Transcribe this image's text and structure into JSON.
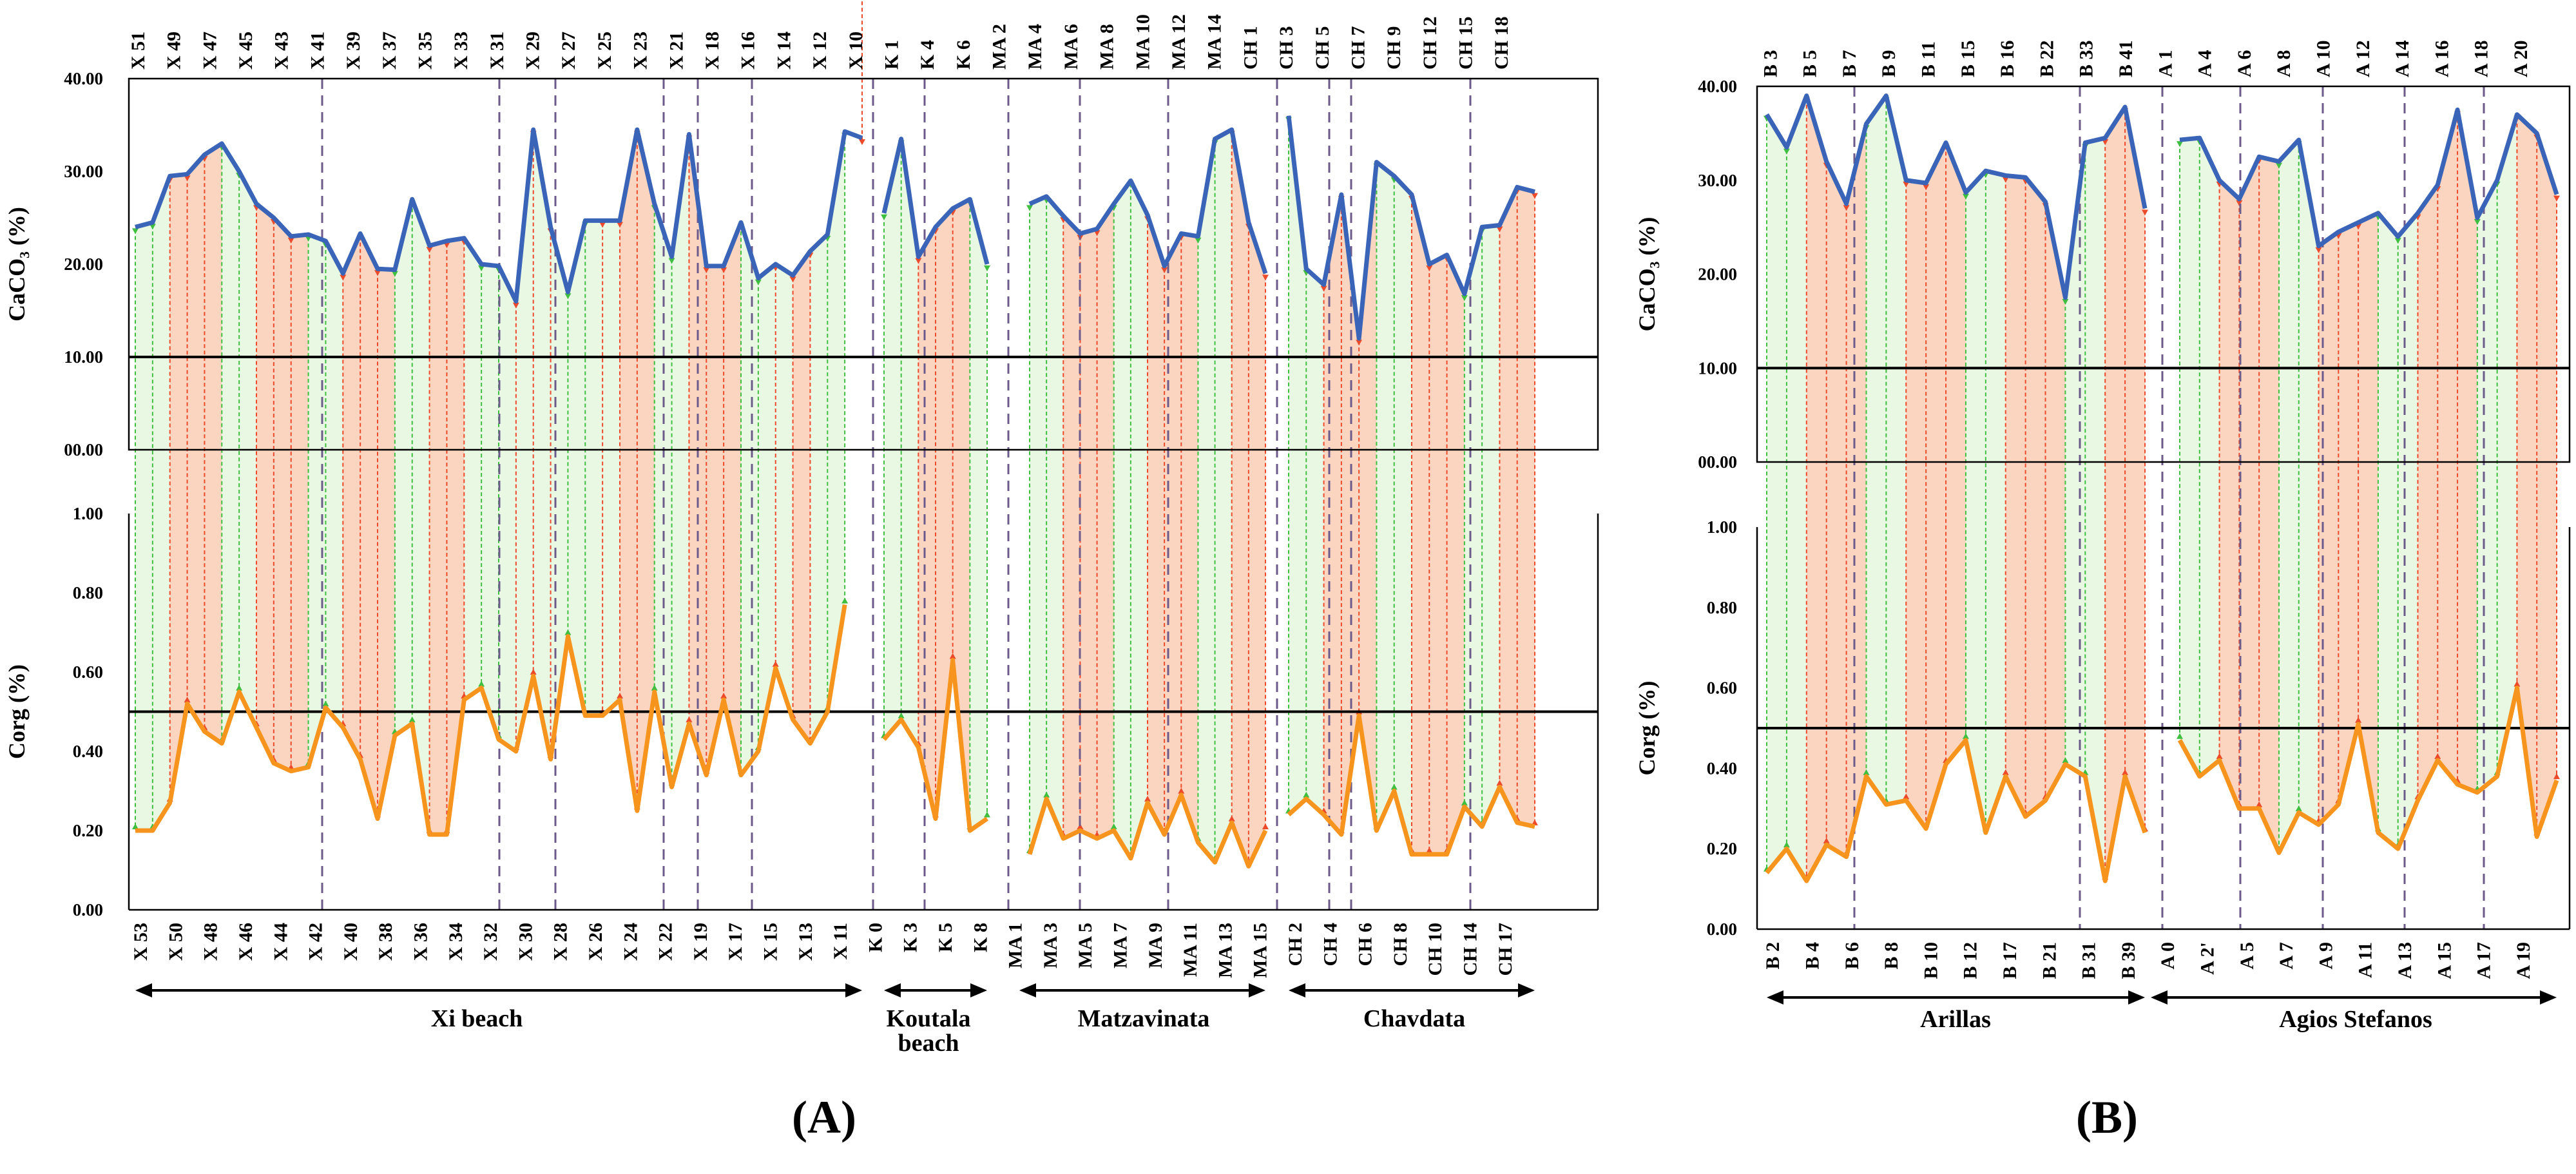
{
  "chart_data": [
    {
      "type": "line",
      "panel_label": "(A)",
      "title": "",
      "upper": {
        "ylabel": "CaCO₃ (%)",
        "ylim": [
          0,
          40
        ],
        "yticks": [
          "00.00",
          "10.00",
          "20.00",
          "30.00",
          "40.00"
        ],
        "threshold": 10,
        "top_labels": [
          "X 51",
          "X 49",
          "X 47",
          "X 45",
          "X 43",
          "X 41",
          "X 39",
          "X 37",
          "X 35",
          "X 33",
          "X 31",
          "X 29",
          "X 27",
          "X 25",
          "X 23",
          "X 21",
          "X 18",
          "X 16",
          "X 14",
          "X 12",
          "X 10",
          "K 1",
          "K 4",
          "K 6",
          "MA 2",
          "MA 4",
          "MA 6",
          "MA 8",
          "MA 10",
          "MA 12",
          "MA 14",
          "CH 1",
          "CH 3",
          "CH 5",
          "CH 7",
          "CH 9",
          "CH 12",
          "CH 15",
          "CH 18"
        ],
        "series": [
          {
            "name": "CaCO3 Xi beach",
            "values": [
              24,
              24.5,
              29.5,
              29.7,
              31.8,
              33,
              30,
              26.5,
              25,
              23,
              23.2,
              22.5,
              19,
              23.3,
              19.5,
              19.4,
              27,
              22,
              22.5,
              22.8,
              20,
              19.8,
              16,
              34.5,
              24,
              17,
              24.7,
              24.7,
              24.7,
              34.5,
              26.5,
              20.8,
              34,
              19.8,
              19.8,
              24.5,
              18.5,
              20,
              18.8,
              21.4,
              23.2,
              34.3,
              33.6
            ]
          },
          {
            "name": "CaCO3 Koutala beach",
            "values": [
              25.5,
              33.5,
              20.8,
              24,
              26,
              27,
              20
            ]
          },
          {
            "name": "CaCO3 Matzavinata",
            "values": [
              26.5,
              27.3,
              25.2,
              23.3,
              23.8,
              26.5,
              29,
              25.3,
              19.8,
              23.3,
              23,
              33.5,
              34.5,
              24.5,
              19
            ]
          },
          {
            "name": "CaCO3 Chavdata",
            "values": [
              36,
              19.5,
              17.8,
              27.5,
              12,
              31,
              29.5,
              27.5,
              20,
              21,
              16.8,
              24,
              24.2,
              28.3,
              27.8
            ]
          }
        ]
      },
      "lower": {
        "ylabel": "Corg (%)",
        "ylim": [
          0,
          1
        ],
        "yticks": [
          "0.00",
          "0.20",
          "0.40",
          "0.60",
          "0.80",
          "1.00"
        ],
        "threshold": 0.5,
        "bottom_labels": [
          "X 53",
          "X 50",
          "X 48",
          "X 46",
          "X 44",
          "X 42",
          "X 40",
          "X 38",
          "X 36",
          "X 34",
          "X 32",
          "X 30",
          "X 28",
          "X 26",
          "X 24",
          "X 22",
          "X 19",
          "X 17",
          "X 15",
          "X 13",
          "X 11",
          "K 0",
          "K 3",
          "K 5",
          "K 8",
          "MA 1",
          "MA 3",
          "MA 5",
          "MA 7",
          "MA 9",
          "MA 11",
          "MA 13",
          "MA 15",
          "CH 2",
          "CH 4",
          "CH 6",
          "CH 8",
          "CH 10",
          "CH 14",
          "CH 17"
        ],
        "series": [
          {
            "name": "Corg Xi beach",
            "values": [
              0.2,
              0.2,
              0.27,
              0.52,
              0.45,
              0.42,
              0.55,
              0.46,
              0.37,
              0.35,
              0.36,
              0.51,
              0.46,
              0.38,
              0.23,
              0.44,
              0.47,
              0.19,
              0.19,
              0.53,
              0.56,
              0.43,
              0.4,
              0.59,
              0.38,
              0.69,
              0.49,
              0.49,
              0.53,
              0.25,
              0.55,
              0.31,
              0.47,
              0.34,
              0.53,
              0.34,
              0.4,
              0.61,
              0.48,
              0.42,
              0.5,
              0.77
            ]
          },
          {
            "name": "Corg Koutala beach",
            "values": [
              0.43,
              0.48,
              0.41,
              0.23,
              0.63,
              0.2,
              0.23
            ]
          },
          {
            "name": "Corg Matzavinata",
            "values": [
              0.14,
              0.28,
              0.18,
              0.2,
              0.18,
              0.2,
              0.13,
              0.27,
              0.19,
              0.29,
              0.17,
              0.12,
              0.22,
              0.11,
              0.2
            ]
          },
          {
            "name": "Corg Chavdata",
            "values": [
              0.24,
              0.28,
              0.24,
              0.19,
              0.49,
              0.2,
              0.3,
              0.14,
              0.14,
              0.14,
              0.26,
              0.21,
              0.31,
              0.22,
              0.21
            ]
          }
        ]
      },
      "groups": [
        {
          "name": "Xi beach",
          "name_line2": ""
        },
        {
          "name": "Koutala",
          "name_line2": "beach"
        },
        {
          "name": "Matzavinata",
          "name_line2": ""
        },
        {
          "name": "Chavdata",
          "name_line2": ""
        }
      ]
    },
    {
      "type": "line",
      "panel_label": "(B)",
      "title": "",
      "upper": {
        "ylabel": "CaCO₃ (%)",
        "ylim": [
          0,
          40
        ],
        "yticks": [
          "00.00",
          "10.00",
          "20.00",
          "30.00",
          "40.00"
        ],
        "threshold": 10,
        "top_labels": [
          "B 3",
          "B 5",
          "B 7",
          "B 9",
          "B 11",
          "B 15",
          "B 16",
          "B 22",
          "B 33",
          "B 41",
          "A 1",
          "A 4",
          "A 6",
          "A 8",
          "A 10",
          "A 12",
          "A 14",
          "A 16",
          "A 18",
          "A 20"
        ],
        "series": [
          {
            "name": "CaCO3 Arillas",
            "values": [
              37,
              33.5,
              39,
              32,
              27.5,
              36,
              39,
              30,
              29.7,
              34,
              28.7,
              31,
              30.5,
              30.3,
              27.7,
              17.5,
              34,
              34.5,
              37.8,
              27
            ]
          },
          {
            "name": "CaCO3 Agios Stefanos",
            "values": [
              34.3,
              34.5,
              30,
              28,
              32.5,
              32,
              34.3,
              23,
              24.5,
              25.5,
              26.5,
              24,
              26.5,
              29.5,
              37.5,
              26,
              30,
              37,
              35,
              28.5
            ]
          }
        ]
      },
      "lower": {
        "ylabel": "Corg (%)",
        "ylim": [
          0,
          1
        ],
        "yticks": [
          "0.00",
          "0.20",
          "0.40",
          "0.60",
          "0.80",
          "1.00"
        ],
        "threshold": 0.5,
        "bottom_labels": [
          "B 2",
          "B 4",
          "B 6",
          "B 8",
          "B 10",
          "B 12",
          "B 17",
          "B 21",
          "B 31",
          "B 39",
          "A 0",
          "A 2'",
          "A 5",
          "A 7",
          "A 9",
          "A 11",
          "A 13",
          "A 15",
          "A 17",
          "A 19"
        ],
        "series": [
          {
            "name": "Corg Arillas",
            "values": [
              0.14,
              0.2,
              0.12,
              0.21,
              0.18,
              0.38,
              0.31,
              0.32,
              0.25,
              0.41,
              0.47,
              0.24,
              0.38,
              0.28,
              0.32,
              0.41,
              0.38,
              0.12,
              0.38,
              0.24
            ]
          },
          {
            "name": "Corg Agios Stefanos",
            "values": [
              0.47,
              0.38,
              0.42,
              0.3,
              0.3,
              0.19,
              0.29,
              0.26,
              0.31,
              0.51,
              0.24,
              0.2,
              0.32,
              0.42,
              0.36,
              0.34,
              0.38,
              0.6,
              0.23,
              0.37
            ]
          }
        ]
      },
      "groups": [
        {
          "name": "Arillas",
          "name_line2": ""
        },
        {
          "name": "Agios Stefanos",
          "name_line2": ""
        }
      ]
    }
  ],
  "colors": {
    "caco3_line": "#3a64b8",
    "corg_line": "#f7941d",
    "green_fill": "#e8f8e3",
    "orange_fill": "#fbd5c0",
    "green_drop": "#3fbf3f",
    "red_drop": "#ec4a2a",
    "divider": "#6b5a8a"
  }
}
